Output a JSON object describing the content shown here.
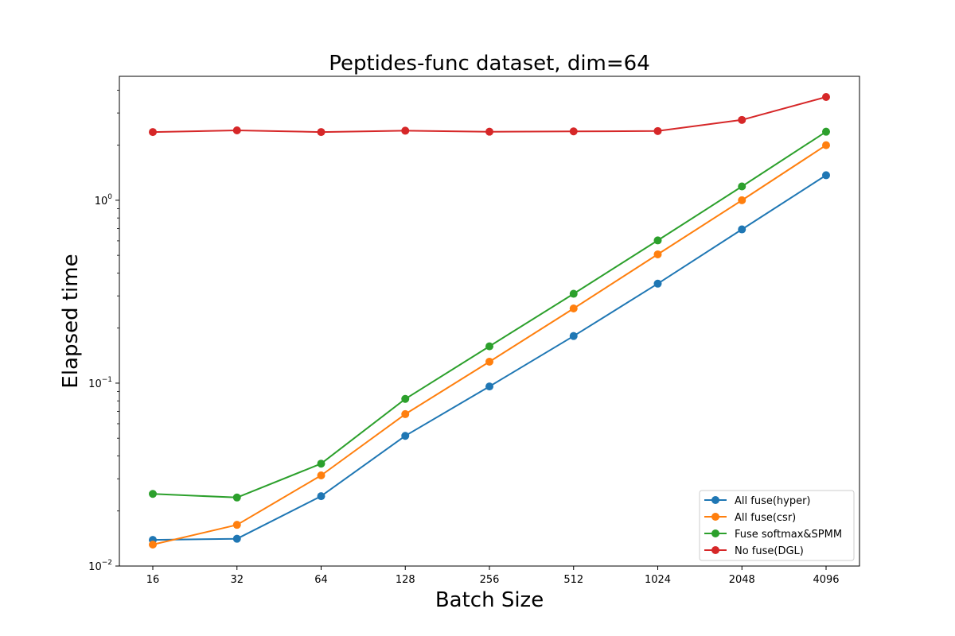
{
  "chart_data": {
    "type": "line",
    "title": "Peptides-func dataset, dim=64",
    "xlabel": "Batch Size",
    "ylabel": "Elapsed time",
    "yscale": "log",
    "ylim": [
      0.01,
      4.76
    ],
    "grid": false,
    "legend_position": "bottom-right",
    "categories": [
      "16",
      "32",
      "64",
      "128",
      "256",
      "512",
      "1024",
      "2048",
      "4096"
    ],
    "y_ticks": [
      {
        "value": 0.01,
        "base": "10",
        "exp": "−2"
      },
      {
        "value": 0.1,
        "base": "10",
        "exp": "−1"
      },
      {
        "value": 1,
        "base": "10",
        "exp": "0"
      }
    ],
    "series": [
      {
        "name": "All fuse(hyper)",
        "color": "#1f77b4",
        "values": [
          0.0139,
          0.0141,
          0.0241,
          0.0515,
          0.0959,
          0.181,
          0.35,
          0.693,
          1.37
        ]
      },
      {
        "name": "All fuse(csr)",
        "color": "#ff7f0e",
        "values": [
          0.0131,
          0.0168,
          0.0313,
          0.0677,
          0.131,
          0.256,
          0.506,
          1.0,
          2.0
        ]
      },
      {
        "name": "Fuse softmax&SPMM",
        "color": "#2ca02c",
        "values": [
          0.0248,
          0.0237,
          0.0363,
          0.082,
          0.159,
          0.308,
          0.603,
          1.19,
          2.37
        ]
      },
      {
        "name": "No fuse(DGL)",
        "color": "#d62728",
        "values": [
          2.36,
          2.41,
          2.36,
          2.4,
          2.37,
          2.38,
          2.39,
          2.75,
          3.67
        ]
      }
    ]
  }
}
